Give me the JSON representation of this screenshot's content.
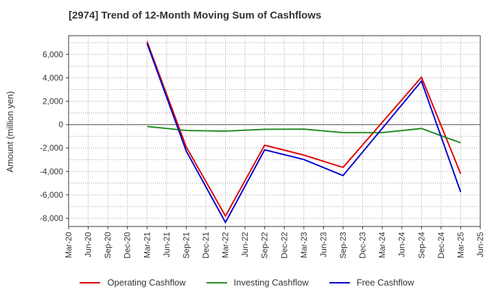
{
  "chart_data": {
    "type": "line",
    "title": "[2974]  Trend of 12-Month Moving Sum of Cashflows",
    "xlabel": "",
    "ylabel": "Amount (million yen)",
    "categories": [
      "Mar-20",
      "Jun-20",
      "Sep-20",
      "Dec-20",
      "Mar-21",
      "Jun-21",
      "Sep-21",
      "Dec-21",
      "Mar-22",
      "Jun-22",
      "Sep-22",
      "Dec-22",
      "Mar-23",
      "Jun-23",
      "Sep-23",
      "Dec-23",
      "Mar-24",
      "Jun-24",
      "Sep-24",
      "Dec-24",
      "Mar-25",
      "Jun-25"
    ],
    "ylim": [
      -8700,
      7600
    ],
    "yticks": [
      -8000,
      -6000,
      -4000,
      -2000,
      0,
      2000,
      4000,
      6000
    ],
    "ytick_labels": [
      "-8,000",
      "-6,000",
      "-4,000",
      "-2,000",
      "0",
      "2,000",
      "4,000",
      "6,000"
    ],
    "grid": true,
    "legend_position": "bottom",
    "series": [
      {
        "name": "Operating Cashflow",
        "color": "#e00000",
        "values": [
          null,
          null,
          null,
          null,
          7100,
          null,
          -1900,
          null,
          -7800,
          null,
          -1750,
          null,
          -2600,
          null,
          -3650,
          null,
          null,
          null,
          4050,
          null,
          -4200,
          null
        ]
      },
      {
        "name": "Investing Cashflow",
        "color": "#228b22",
        "values": [
          null,
          null,
          null,
          null,
          -150,
          null,
          -500,
          null,
          -550,
          null,
          -400,
          null,
          -380,
          null,
          -680,
          null,
          -680,
          null,
          -330,
          null,
          -1550,
          null
        ]
      },
      {
        "name": "Free Cashflow",
        "color": "#0000cc",
        "values": [
          null,
          null,
          null,
          null,
          6950,
          null,
          -2250,
          null,
          -8350,
          null,
          -2150,
          null,
          -2980,
          null,
          -4350,
          null,
          null,
          null,
          3720,
          null,
          -5750,
          null
        ]
      }
    ]
  }
}
